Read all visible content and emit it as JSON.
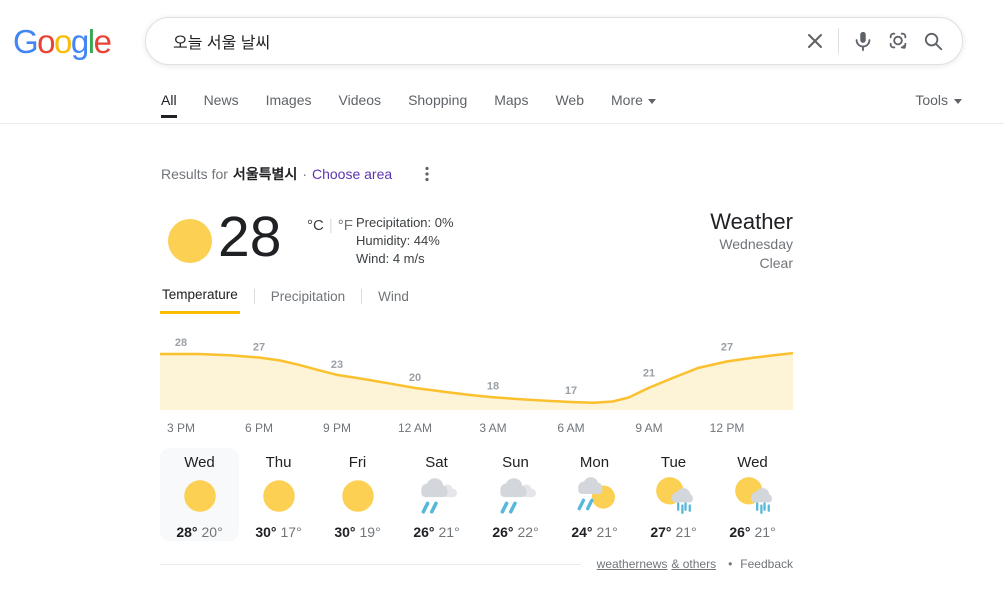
{
  "header": {
    "logo_text": "Google",
    "logo_letter_colors": [
      "#4285F4",
      "#EA4335",
      "#FBBC05",
      "#4285F4",
      "#34A853",
      "#EA4335"
    ],
    "search": {
      "query": "오늘 서울 날씨"
    },
    "nav": {
      "tabs": [
        {
          "label": "All",
          "active": true
        },
        {
          "label": "News"
        },
        {
          "label": "Images"
        },
        {
          "label": "Videos"
        },
        {
          "label": "Shopping"
        },
        {
          "label": "Maps"
        },
        {
          "label": "Web"
        },
        {
          "label": "More",
          "caret": true
        }
      ],
      "tools_label": "Tools"
    }
  },
  "results_for": {
    "prefix": "Results for",
    "location": "서울특별시",
    "separator": "·",
    "choose_area_label": "Choose area"
  },
  "weather": {
    "current": {
      "temp": "28",
      "unit_c": "°C",
      "unit_divider": "|",
      "unit_f": "°F",
      "details": [
        "Precipitation: 0%",
        "Humidity: 44%",
        "Wind: 4 m/s"
      ]
    },
    "header": {
      "title": "Weather",
      "day": "Wednesday",
      "condition": "Clear"
    },
    "tabs": [
      {
        "label": "Temperature",
        "active": true
      },
      {
        "label": "Precipitation"
      },
      {
        "label": "Wind"
      }
    ],
    "forecast": {
      "days": [
        {
          "name": "Wed",
          "icon": "sun",
          "hi": "28°",
          "lo": "20°",
          "selected": true
        },
        {
          "name": "Thu",
          "icon": "sun",
          "hi": "30°",
          "lo": "17°"
        },
        {
          "name": "Fri",
          "icon": "sun",
          "hi": "30°",
          "lo": "19°"
        },
        {
          "name": "Sat",
          "icon": "rain",
          "hi": "26°",
          "lo": "21°"
        },
        {
          "name": "Sun",
          "icon": "rain",
          "hi": "26°",
          "lo": "22°"
        },
        {
          "name": "Mon",
          "icon": "rain-sun",
          "hi": "24°",
          "lo": "21°"
        },
        {
          "name": "Tue",
          "icon": "sun-drizzle",
          "hi": "27°",
          "lo": "21°"
        },
        {
          "name": "Wed",
          "icon": "sun-drizzle",
          "hi": "26°",
          "lo": "21°"
        }
      ]
    }
  },
  "chart_data": {
    "type": "area",
    "title": "Hourly temperature forecast (°C)",
    "x": [
      "3 PM",
      "6 PM",
      "9 PM",
      "12 AM",
      "3 AM",
      "6 AM",
      "9 AM",
      "12 PM"
    ],
    "values": [
      28,
      27,
      23,
      20,
      18,
      17,
      21,
      27
    ],
    "ylim": [
      16,
      29
    ],
    "grid": false,
    "legend": "none",
    "curve": [
      [
        0,
        28
      ],
      [
        0.06,
        28
      ],
      [
        0.11,
        27.7
      ],
      [
        0.156,
        27.2
      ],
      [
        0.19,
        26.5
      ],
      [
        0.22,
        25.5
      ],
      [
        0.25,
        24.3
      ],
      [
        0.28,
        23.2
      ],
      [
        0.32,
        22.3
      ],
      [
        0.36,
        21.3
      ],
      [
        0.403,
        20.2
      ],
      [
        0.45,
        19.3
      ],
      [
        0.49,
        18.6
      ],
      [
        0.526,
        18.1
      ],
      [
        0.57,
        17.6
      ],
      [
        0.61,
        17.3
      ],
      [
        0.649,
        17
      ],
      [
        0.685,
        16.8
      ],
      [
        0.715,
        17.1
      ],
      [
        0.74,
        18
      ],
      [
        0.773,
        20.3
      ],
      [
        0.81,
        22.5
      ],
      [
        0.85,
        24.8
      ],
      [
        0.896,
        26.3
      ],
      [
        0.94,
        27.2
      ],
      [
        0.97,
        27.7
      ],
      [
        1,
        28.2
      ]
    ]
  },
  "attribution": {
    "links": [
      "weathernews",
      "& others"
    ],
    "separator": "•",
    "feedback_label": "Feedback"
  },
  "colors": {
    "accent-yellow": "#fbbc04",
    "chart-line": "#fbc02d",
    "chart-fill": "#fdf3d7",
    "link-purple": "#5e35b1",
    "sun-yellow": "#fcd053",
    "rain-blue": "#56b8da",
    "cloud-gray": "#d3d6db",
    "cloud-light": "#e4e6e9"
  }
}
